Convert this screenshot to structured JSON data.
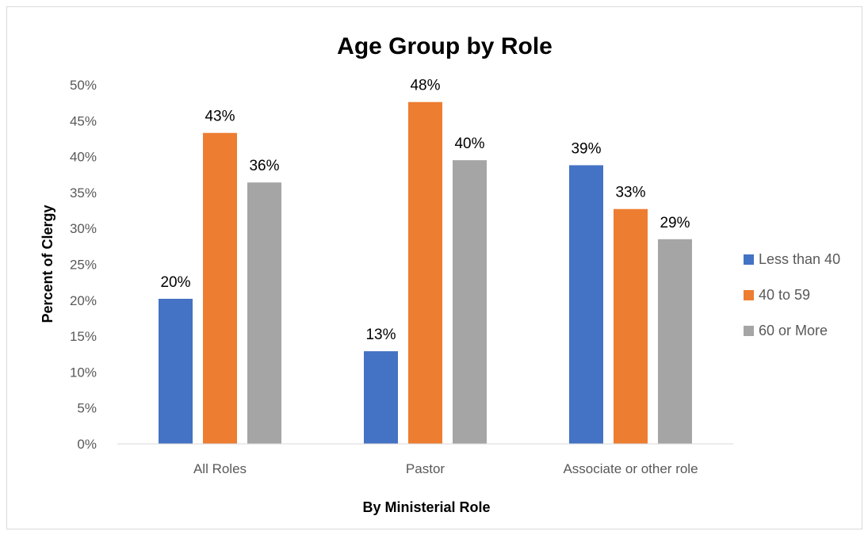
{
  "chart_data": {
    "type": "bar",
    "title": "Age Group by Role",
    "xlabel": "By Ministerial Role",
    "ylabel": "Percent of Clergy",
    "ylim": [
      0,
      50
    ],
    "yticks": [
      "0%",
      "5%",
      "10%",
      "15%",
      "20%",
      "25%",
      "30%",
      "35%",
      "40%",
      "45%",
      "50%"
    ],
    "categories": [
      "All Roles",
      "Pastor",
      "Associate or other role"
    ],
    "series": [
      {
        "name": "Less than 40",
        "color": "#4472C4",
        "values": [
          20.2,
          12.9,
          38.8
        ],
        "labels": [
          "20%",
          "13%",
          "39%"
        ]
      },
      {
        "name": "40 to 59",
        "color": "#ED7D31",
        "values": [
          43.3,
          47.6,
          32.7
        ],
        "labels": [
          "43%",
          "48%",
          "33%"
        ]
      },
      {
        "name": "60 or More",
        "color": "#A5A5A5",
        "values": [
          36.4,
          39.5,
          28.5
        ],
        "labels": [
          "36%",
          "40%",
          "29%"
        ]
      }
    ],
    "grid": false,
    "legend_position": "right"
  }
}
